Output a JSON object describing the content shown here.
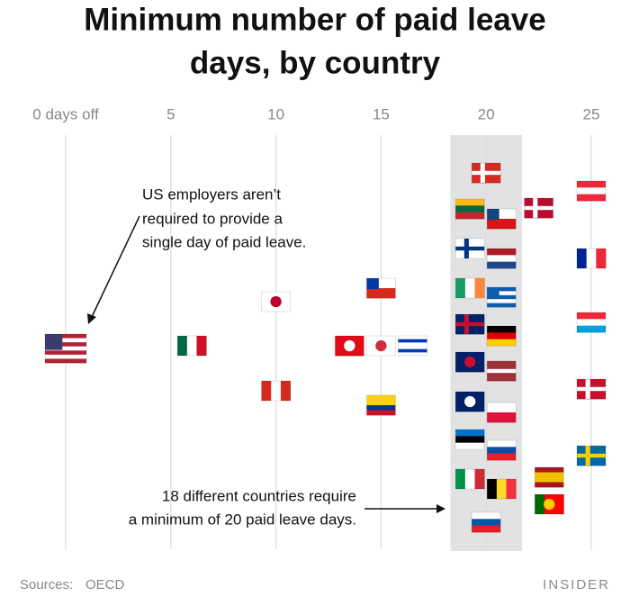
{
  "chart_data": {
    "type": "dot",
    "title_lines": [
      "Minimum number of paid leave",
      "days, by country"
    ],
    "xlim": [
      0,
      25
    ],
    "xticks": [
      {
        "value": 0,
        "label": "0 days off"
      },
      5,
      10,
      15,
      20,
      25
    ],
    "grid": true,
    "highlight": 20,
    "values": [
      0,
      6,
      10,
      10,
      13.5,
      15,
      16.5,
      15,
      15,
      20,
      20,
      20,
      20,
      20,
      20,
      20,
      20,
      20,
      20,
      20,
      20,
      20,
      20,
      20,
      20,
      20,
      20,
      22.5,
      23,
      23,
      25,
      25,
      25,
      25,
      25
    ],
    "flags": [
      {
        "d": "h",
        "s": [
          "#b22234",
          "#fff",
          "#b22234",
          "#fff",
          "#b22234",
          "#fff",
          "#b22234"
        ],
        "canton": "#3c3b6e"
      },
      {
        "d": "v",
        "s": [
          "#006847",
          "#fff",
          "#ce1126"
        ]
      },
      {
        "d": "h",
        "s": [
          "#fff"
        ],
        "dot": "#bc002d"
      },
      {
        "d": "v",
        "s": [
          "#d52b1e",
          "#fff",
          "#d52b1e"
        ]
      },
      {
        "d": "h",
        "s": [
          "#e30a17"
        ],
        "dot": "#fff"
      },
      {
        "d": "h",
        "s": [
          "#fff"
        ],
        "dot": "#cd2e3a"
      },
      {
        "d": "h",
        "s": [
          "#fff",
          "#0038b8",
          "#fff",
          "#fff",
          "#0038b8",
          "#fff"
        ]
      },
      {
        "d": "h",
        "s": [
          "#fff",
          "#d52b1e"
        ],
        "canton": "#0039a6"
      },
      {
        "d": "h",
        "s": [
          "#fcd116",
          "#fcd116",
          "#003893",
          "#ce1126"
        ]
      },
      {
        "d": "h",
        "s": [
          "#d52b1e"
        ],
        "cross": "#fff"
      },
      {
        "d": "h",
        "s": [
          "#fdb913",
          "#006a44",
          "#c1272d"
        ]
      },
      {
        "d": "h",
        "s": [
          "#fff",
          "#d7141a"
        ],
        "canton": "#11457e"
      },
      {
        "d": "h",
        "s": [
          "#fff"
        ],
        "cross": "#003580"
      },
      {
        "d": "h",
        "s": [
          "#ae1c28",
          "#fff",
          "#21468b"
        ]
      },
      {
        "d": "v",
        "s": [
          "#169b62",
          "#fff",
          "#ff883e"
        ]
      },
      {
        "d": "h",
        "s": [
          "#0d5eaf",
          "#fff",
          "#0d5eaf",
          "#fff",
          "#0d5eaf"
        ],
        "canton": "#0d5eaf"
      },
      {
        "d": "h",
        "s": [
          "#012169"
        ],
        "cross": "#c8102e"
      },
      {
        "d": "h",
        "s": [
          "#000",
          "#dd0000",
          "#ffce00"
        ]
      },
      {
        "d": "h",
        "s": [
          "#012169"
        ],
        "dot": "#c8102e"
      },
      {
        "d": "h",
        "s": [
          "#9e3039",
          "#9e3039",
          "#fff",
          "#9e3039",
          "#9e3039"
        ]
      },
      {
        "d": "h",
        "s": [
          "#012169"
        ],
        "dot": "#fff"
      },
      {
        "d": "h",
        "s": [
          "#fff",
          "#dc143c"
        ]
      },
      {
        "d": "h",
        "s": [
          "#0072ce",
          "#000",
          "#fff"
        ]
      },
      {
        "d": "h",
        "s": [
          "#fff",
          "#0b4ea2",
          "#ee1c25"
        ]
      },
      {
        "d": "v",
        "s": [
          "#009246",
          "#fff",
          "#ce2b37"
        ]
      },
      {
        "d": "v",
        "s": [
          "#000",
          "#fdda24",
          "#ef3340"
        ]
      },
      {
        "d": "h",
        "s": [
          "#fff",
          "#0056a3",
          "#ed1c24"
        ]
      },
      {
        "d": "h",
        "s": [
          "#ba0c2f"
        ],
        "cross": "#fff"
      },
      {
        "d": "h",
        "s": [
          "#aa151b",
          "#f1bf00",
          "#f1bf00",
          "#aa151b"
        ]
      },
      {
        "d": "v",
        "s": [
          "#006600",
          "#ff0000",
          "#ff0000"
        ],
        "dot": "#ffcc00"
      },
      {
        "d": "h",
        "s": [
          "#ed2939",
          "#fff",
          "#ed2939"
        ]
      },
      {
        "d": "v",
        "s": [
          "#002395",
          "#fff",
          "#ed2939"
        ]
      },
      {
        "d": "h",
        "s": [
          "#ed2939",
          "#fff",
          "#00a1de"
        ]
      },
      {
        "d": "h",
        "s": [
          "#c8102e"
        ],
        "cross": "#fff"
      },
      {
        "d": "h",
        "s": [
          "#006aa7"
        ],
        "cross": "#fecc00"
      }
    ],
    "annotations": [
      {
        "lines": [
          "US employers aren’t",
          "required to provide a",
          "single day of paid leave."
        ]
      },
      {
        "lines": [
          "18 different countries require",
          "a minimum of 20 paid leave days."
        ]
      }
    ],
    "source_label": "Sources:",
    "source": "OECD",
    "brand": "INSIDER"
  }
}
